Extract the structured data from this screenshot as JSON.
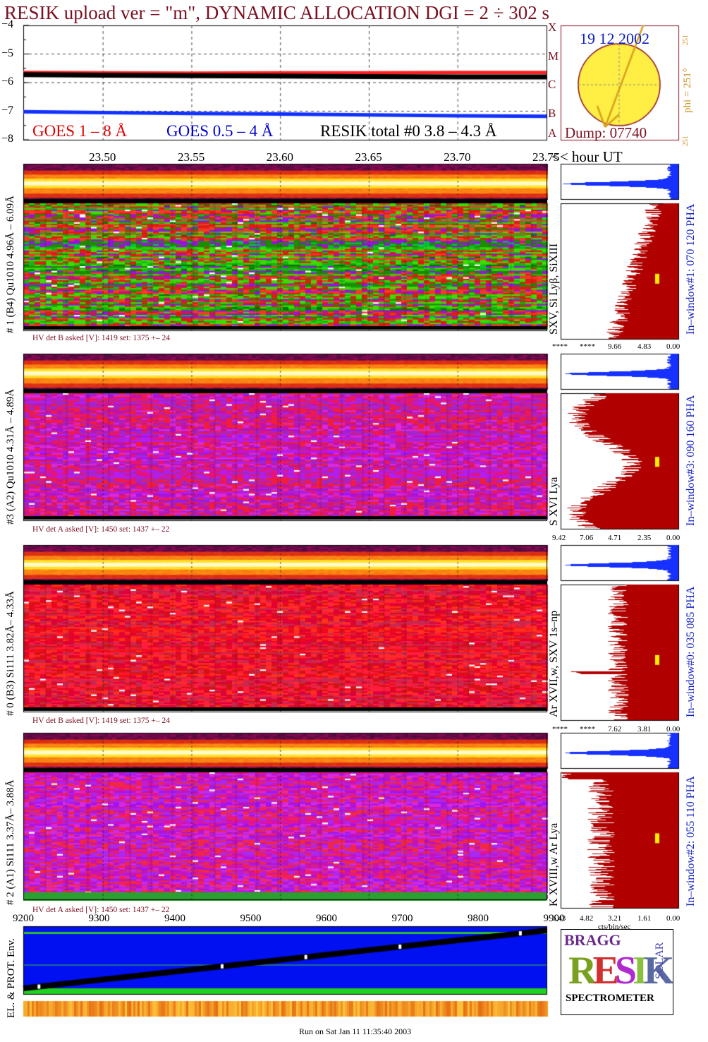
{
  "header": {
    "title": "RESIK upload ver = \"m\", DYNAMIC ALLOCATION  DGI =   2 ÷ 302 s"
  },
  "goes_panel": {
    "legend": {
      "goes_long": "GOES 1 – 8 Å",
      "goes_short": "GOES 0.5 – 4 Å",
      "resik_total": "RESIK total #0  3.8 – 4.3 Å"
    },
    "y_ticks": [
      "−4",
      "−5",
      "−6",
      "−7",
      "−8"
    ],
    "class_letters": [
      "X",
      "M",
      "C",
      "B",
      "A"
    ],
    "x_ticks": [
      "23.50",
      "23.55",
      "23.60",
      "23.65",
      "23.70",
      "23.75"
    ],
    "x_unit_label": "<< hour UT",
    "colors": {
      "goes_long": "#ff2020",
      "goes_short": "#1030ff",
      "resik": "#000000"
    }
  },
  "chart_data": {
    "type": "line",
    "xlabel": "<< hour UT",
    "xlim": [
      23.455,
      23.75
    ],
    "ylim": [
      -8,
      -4
    ],
    "y_ticks": [
      -4,
      -5,
      -6,
      -7,
      -8
    ],
    "x_ticks": [
      23.5,
      23.55,
      23.6,
      23.65,
      23.7,
      23.75
    ],
    "series": [
      {
        "name": "GOES 1 – 8 Å",
        "color": "#ff2020",
        "x": [
          23.455,
          23.5,
          23.55,
          23.6,
          23.65,
          23.7,
          23.75
        ],
        "y": [
          -5.65,
          -5.66,
          -5.67,
          -5.66,
          -5.66,
          -5.65,
          -5.65
        ]
      },
      {
        "name": "RESIK total #0  3.8 – 4.3 Å",
        "color": "#000000",
        "x": [
          23.455,
          23.5,
          23.55,
          23.6,
          23.65,
          23.7,
          23.75
        ],
        "y": [
          -5.72,
          -5.74,
          -5.76,
          -5.77,
          -5.79,
          -5.8,
          -5.8
        ]
      },
      {
        "name": "GOES 0.5 – 4 Å",
        "color": "#1030ff",
        "x": [
          23.455,
          23.5,
          23.55,
          23.6,
          23.65,
          23.7,
          23.75
        ],
        "y": [
          -7.02,
          -7.05,
          -7.08,
          -7.1,
          -7.13,
          -7.16,
          -7.18
        ]
      }
    ]
  },
  "sun_panel": {
    "date": "19 12 2002",
    "dump": "Dump: 07740",
    "phi": "phi = 251°",
    "phi_small_top": "251",
    "phi_small_bottom": "251",
    "colors": {
      "disk": "#ffee44",
      "arrow": "#d8a020",
      "frame": "#8a1020"
    }
  },
  "channels": [
    {
      "id": "ch1",
      "left_label": "# 1 (B4) Qu1010 4.96Å – 6.09Å",
      "line_label": "SXV, Si Lyβ, SiXIII",
      "window_label": "In–window#1:  070 120 PHA",
      "hv": "HV det B asked [V]:  1419 set:  1375  +–   24",
      "axis_ticks": [
        "****",
        "****",
        "9.66",
        "4.83",
        "0.00"
      ],
      "palette": "green",
      "marker_frac": 0.52
    },
    {
      "id": "ch3",
      "left_label": "#3 (A2) Qu1010  4.31Å – 4.89Å",
      "line_label": "S XVI Lya",
      "window_label": "In–window#3:  090 160 PHA",
      "hv": "HV det A asked [V]:  1450 set:  1437  +–   22",
      "axis_ticks": [
        "9.42",
        "7.06",
        "4.71",
        "2.35",
        "0.00"
      ],
      "palette": "purple",
      "marker_frac": 0.47
    },
    {
      "id": "ch0",
      "left_label": "# 0 (B3) Si111  3.82Å– 4.33Å",
      "line_label": "Ar XVII,w, SXV 1s–np",
      "window_label": "In–window#0:  035 085 PHA",
      "hv": "HV det B asked [V]:  1419 set:  1375  +–   24",
      "axis_ticks": [
        "****",
        "****",
        "7.62",
        "3.81",
        "0.00"
      ],
      "palette": "red",
      "marker_frac": 0.52
    },
    {
      "id": "ch2",
      "left_label": "# 2 (A1) Si111  3.37Å– 3.88Å",
      "line_label": "K XVIII,w  Ar Lya",
      "window_label": "In–window#2:  055 110 PHA",
      "hv": "HV det A asked [V]:  1450 set:  1437  +–   22",
      "axis_ticks": [
        "6.43",
        "4.82",
        "3.21",
        "1.61",
        "0.00"
      ],
      "palette": "purple2",
      "marker_frac": 0.45,
      "unit": "cts/bin/sec"
    }
  ],
  "bottom_panel": {
    "x_ticks": [
      "9200",
      "9300",
      "9400",
      "9500",
      "9600",
      "9700",
      "9800",
      "9900"
    ],
    "ylabel": "EL. & PROT. Env."
  },
  "logo": {
    "word": "RESIK",
    "side_left": "BRAGG",
    "side_right": "SOLAR",
    "caption": "SPECTROMETER"
  },
  "footer": "Run on Sat Jan 11 11:35:40 2003"
}
